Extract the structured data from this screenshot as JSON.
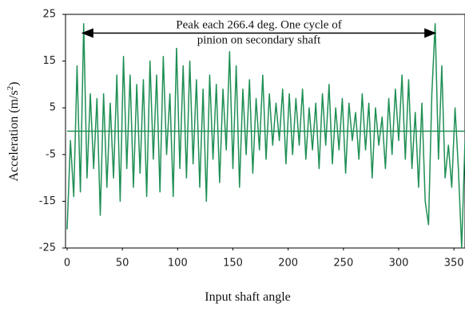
{
  "chart_data": {
    "type": "line",
    "x_label": "Input shaft angle",
    "y_label_parts": [
      "Acceleration (m/s",
      "2",
      ")"
    ],
    "annotation": {
      "lines": [
        "Peak each 266.4 deg. One cycle of",
        "pinion on secondary shaft"
      ],
      "x_start": 14,
      "x_end": 333,
      "y": 21
    },
    "hline": 0,
    "xlim": [
      0,
      360
    ],
    "xticks": [
      0,
      50,
      100,
      150,
      200,
      250,
      300,
      350
    ],
    "ylim": [
      -25,
      25
    ],
    "yticks": [
      25,
      15,
      5,
      -5,
      -15,
      -25
    ],
    "x": [
      0,
      3,
      6,
      9,
      12,
      15,
      18,
      21,
      24,
      27,
      30,
      33,
      36,
      39,
      42,
      45,
      48,
      51,
      54,
      57,
      60,
      63,
      66,
      69,
      72,
      75,
      78,
      81,
      84,
      87,
      90,
      93,
      96,
      99,
      102,
      105,
      108,
      111,
      114,
      117,
      120,
      123,
      126,
      129,
      132,
      135,
      138,
      141,
      144,
      147,
      150,
      153,
      156,
      159,
      162,
      165,
      168,
      171,
      174,
      177,
      180,
      183,
      186,
      189,
      192,
      195,
      198,
      201,
      204,
      207,
      210,
      213,
      216,
      219,
      222,
      225,
      228,
      231,
      234,
      237,
      240,
      243,
      246,
      249,
      252,
      255,
      258,
      261,
      264,
      267,
      270,
      273,
      276,
      279,
      282,
      285,
      288,
      291,
      294,
      297,
      300,
      303,
      306,
      309,
      312,
      315,
      318,
      321,
      324,
      327,
      330,
      333,
      336,
      339,
      342,
      345,
      348,
      351,
      354,
      357,
      360
    ],
    "series": [
      {
        "color": "#1f8f55",
        "values": [
          -21,
          -2,
          -14,
          14,
          -13,
          23,
          -10,
          8,
          -8,
          7,
          -18,
          8,
          -12,
          6,
          -10,
          12,
          -15,
          16,
          -8,
          12,
          -12,
          10,
          -9,
          11,
          -14,
          15,
          -6,
          12,
          -13,
          16,
          -5,
          8,
          -14,
          18,
          -8,
          14,
          -10,
          15,
          -7,
          11,
          -12,
          9,
          -15,
          12,
          -6,
          10,
          -11,
          9,
          -4,
          17,
          -8,
          14,
          -12,
          9,
          -5,
          11,
          -9,
          7,
          -4,
          12,
          -6,
          8,
          -3,
          6,
          -2,
          9,
          -7,
          8,
          -5,
          7,
          -3,
          9,
          -6,
          5,
          -4,
          6,
          -8,
          8,
          -3,
          10,
          -7,
          5,
          -4,
          7,
          -9,
          6,
          -2,
          4,
          -6,
          8,
          -4,
          6,
          -10,
          5,
          -3,
          3,
          -8,
          7,
          -5,
          9,
          -2,
          12,
          -6,
          11,
          -8,
          4,
          -12,
          6,
          -15,
          -20,
          8,
          23,
          -6,
          14,
          -10,
          -3,
          -12,
          5,
          -8,
          -25,
          -2
        ]
      }
    ]
  }
}
